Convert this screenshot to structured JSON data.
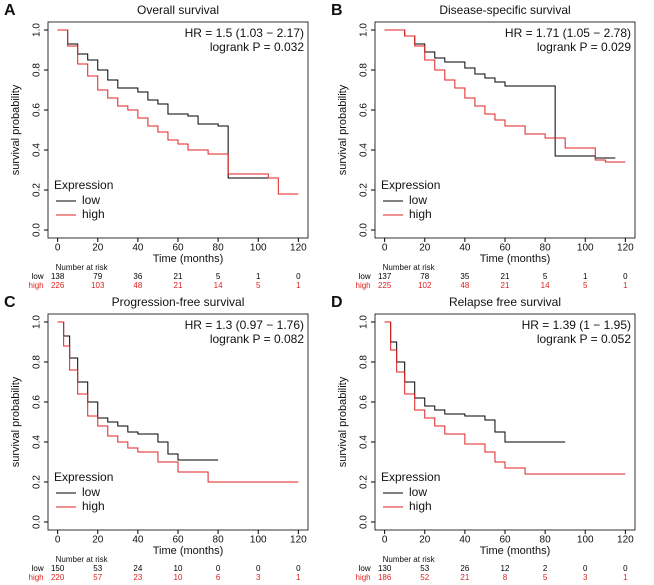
{
  "chart_data": [
    {
      "type": "step",
      "panel_label": "A",
      "title": "Overall survival",
      "annotations": [
        "HR = 1.5 (1.03 − 2.17)",
        "logrank P = 0.032"
      ],
      "x_label": "Time (months)",
      "y_label": "survival probability",
      "legend_title": "Expression",
      "legend_position": "bottom-left",
      "risk_title": "Number at risk",
      "xlim": [
        -4.8,
        124.8
      ],
      "ylim": [
        -0.04,
        1.04
      ],
      "xticks": [
        0,
        20,
        40,
        60,
        80,
        100,
        120
      ],
      "yticks": [
        {
          "value": 0,
          "label": "0.0"
        },
        {
          "value": 0.2,
          "label": "0.2"
        },
        {
          "value": 0.4,
          "label": "0.4"
        },
        {
          "value": 0.6,
          "label": "0.6"
        },
        {
          "value": 0.8,
          "label": "0.8"
        },
        {
          "value": 1,
          "label": "1.0"
        }
      ],
      "series": [
        {
          "name": "low",
          "color": "#000000",
          "x": [
            0,
            5,
            10,
            15,
            20,
            25,
            30,
            40,
            45,
            50,
            55,
            65,
            70,
            80,
            85,
            110
          ],
          "values": [
            1.0,
            0.93,
            0.88,
            0.85,
            0.8,
            0.75,
            0.71,
            0.69,
            0.65,
            0.63,
            0.58,
            0.57,
            0.53,
            0.52,
            0.26,
            0.26
          ],
          "at_risk": [
            138,
            79,
            36,
            21,
            5,
            1,
            0
          ]
        },
        {
          "name": "high",
          "color": "#e02020",
          "x": [
            0,
            5,
            10,
            15,
            20,
            25,
            30,
            35,
            40,
            45,
            50,
            55,
            60,
            65,
            75,
            85,
            105,
            110,
            120
          ],
          "values": [
            1.0,
            0.92,
            0.83,
            0.77,
            0.7,
            0.66,
            0.62,
            0.6,
            0.56,
            0.52,
            0.49,
            0.45,
            0.43,
            0.4,
            0.38,
            0.28,
            0.26,
            0.18,
            0.18
          ],
          "at_risk": [
            226,
            103,
            48,
            21,
            14,
            5,
            1
          ]
        }
      ]
    },
    {
      "type": "step",
      "panel_label": "B",
      "title": "Disease-specific survival",
      "annotations": [
        "HR = 1.71 (1.05 − 2.78)",
        "logrank P = 0.029"
      ],
      "x_label": "Time (months)",
      "y_label": "survival probability",
      "legend_title": "Expression",
      "legend_position": "bottom-left",
      "risk_title": "Number at risk",
      "xlim": [
        -4.8,
        124.8
      ],
      "ylim": [
        -0.04,
        1.04
      ],
      "xticks": [
        0,
        20,
        40,
        60,
        80,
        100,
        120
      ],
      "yticks": [
        {
          "value": 0,
          "label": "0.0"
        },
        {
          "value": 0.2,
          "label": "0.2"
        },
        {
          "value": 0.4,
          "label": "0.4"
        },
        {
          "value": 0.6,
          "label": "0.6"
        },
        {
          "value": 0.8,
          "label": "0.8"
        },
        {
          "value": 1,
          "label": "1.0"
        }
      ],
      "series": [
        {
          "name": "low",
          "color": "#000000",
          "x": [
            0,
            10,
            15,
            20,
            25,
            30,
            40,
            45,
            50,
            55,
            60,
            85,
            105,
            115
          ],
          "values": [
            1.0,
            0.97,
            0.93,
            0.89,
            0.86,
            0.84,
            0.81,
            0.78,
            0.76,
            0.74,
            0.72,
            0.37,
            0.36,
            0.36
          ],
          "at_risk": [
            137,
            78,
            35,
            21,
            5,
            1,
            0
          ]
        },
        {
          "name": "high",
          "color": "#e02020",
          "x": [
            0,
            10,
            15,
            20,
            25,
            30,
            35,
            40,
            45,
            50,
            55,
            60,
            70,
            80,
            90,
            105,
            110,
            120
          ],
          "values": [
            1.0,
            0.97,
            0.92,
            0.85,
            0.8,
            0.75,
            0.71,
            0.66,
            0.62,
            0.58,
            0.55,
            0.52,
            0.48,
            0.46,
            0.41,
            0.35,
            0.34,
            0.34
          ],
          "at_risk": [
            225,
            102,
            48,
            21,
            14,
            5,
            1
          ]
        }
      ]
    },
    {
      "type": "step",
      "panel_label": "C",
      "title": "Progression-free survival",
      "annotations": [
        "HR = 1.3 (0.97 − 1.76)",
        "logrank P = 0.082"
      ],
      "x_label": "Time (months)",
      "y_label": "survival probability",
      "legend_title": "Expression",
      "legend_position": "bottom-left",
      "risk_title": "Number at risk",
      "xlim": [
        -4.8,
        124.8
      ],
      "ylim": [
        -0.04,
        1.04
      ],
      "xticks": [
        0,
        20,
        40,
        60,
        80,
        100,
        120
      ],
      "yticks": [
        {
          "value": 0,
          "label": "0.0"
        },
        {
          "value": 0.2,
          "label": "0.2"
        },
        {
          "value": 0.4,
          "label": "0.4"
        },
        {
          "value": 0.6,
          "label": "0.6"
        },
        {
          "value": 0.8,
          "label": "0.8"
        },
        {
          "value": 1,
          "label": "1.0"
        }
      ],
      "series": [
        {
          "name": "low",
          "color": "#000000",
          "x": [
            0,
            3,
            6,
            10,
            15,
            20,
            25,
            30,
            35,
            40,
            50,
            55,
            60,
            80
          ],
          "values": [
            1.0,
            0.93,
            0.82,
            0.7,
            0.6,
            0.52,
            0.5,
            0.48,
            0.45,
            0.44,
            0.4,
            0.34,
            0.31,
            0.31
          ],
          "at_risk": [
            150,
            53,
            24,
            10,
            0,
            0,
            0
          ]
        },
        {
          "name": "high",
          "color": "#e02020",
          "x": [
            0,
            3,
            6,
            10,
            15,
            20,
            25,
            30,
            35,
            40,
            50,
            60,
            75,
            120
          ],
          "values": [
            1.0,
            0.88,
            0.76,
            0.64,
            0.53,
            0.48,
            0.43,
            0.4,
            0.37,
            0.35,
            0.3,
            0.25,
            0.2,
            0.2
          ],
          "at_risk": [
            220,
            57,
            23,
            10,
            6,
            3,
            1
          ]
        }
      ]
    },
    {
      "type": "step",
      "panel_label": "D",
      "title": "Relapse free survival",
      "annotations": [
        "HR = 1.39 (1 − 1.95)",
        "logrank P = 0.052"
      ],
      "x_label": "Time (months)",
      "y_label": "survival probability",
      "legend_title": "Expression",
      "legend_position": "bottom-left",
      "risk_title": "Number at risk",
      "xlim": [
        -4.8,
        124.8
      ],
      "ylim": [
        -0.04,
        1.04
      ],
      "xticks": [
        0,
        20,
        40,
        60,
        80,
        100,
        120
      ],
      "yticks": [
        {
          "value": 0,
          "label": "0.0"
        },
        {
          "value": 0.2,
          "label": "0.2"
        },
        {
          "value": 0.4,
          "label": "0.4"
        },
        {
          "value": 0.6,
          "label": "0.6"
        },
        {
          "value": 0.8,
          "label": "0.8"
        },
        {
          "value": 1,
          "label": "1.0"
        }
      ],
      "series": [
        {
          "name": "low",
          "color": "#000000",
          "x": [
            0,
            3,
            6,
            10,
            15,
            20,
            25,
            30,
            40,
            50,
            55,
            60,
            90
          ],
          "values": [
            1.0,
            0.9,
            0.8,
            0.7,
            0.62,
            0.58,
            0.56,
            0.54,
            0.53,
            0.51,
            0.45,
            0.4,
            0.4
          ],
          "at_risk": [
            130,
            53,
            26,
            12,
            2,
            0,
            0
          ]
        },
        {
          "name": "high",
          "color": "#e02020",
          "x": [
            0,
            3,
            6,
            10,
            15,
            20,
            25,
            30,
            40,
            50,
            55,
            60,
            70,
            120
          ],
          "values": [
            1.0,
            0.86,
            0.75,
            0.64,
            0.56,
            0.52,
            0.48,
            0.44,
            0.39,
            0.35,
            0.3,
            0.27,
            0.24,
            0.24
          ],
          "at_risk": [
            186,
            52,
            21,
            8,
            5,
            3,
            1
          ]
        }
      ]
    }
  ]
}
